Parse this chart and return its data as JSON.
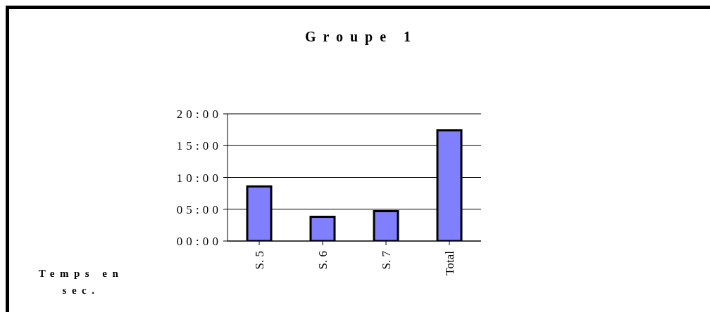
{
  "chart_data": {
    "type": "bar",
    "title": "Groupe 1",
    "annotations": [
      "Temps en sec."
    ],
    "categories": [
      "S. 5",
      "S. 6",
      "S. 7",
      "Total"
    ],
    "values": [
      8.6,
      3.8,
      4.7,
      17.4
    ],
    "color": "#8080ff",
    "ylim": [
      0,
      20
    ],
    "yticks": [
      {
        "value": 0,
        "label": "00:00"
      },
      {
        "value": 5,
        "label": "05:00"
      },
      {
        "value": 10,
        "label": "10:00"
      },
      {
        "value": 15,
        "label": "15:00"
      },
      {
        "value": 20,
        "label": "20:00"
      }
    ],
    "grid": "y",
    "legend": false
  }
}
